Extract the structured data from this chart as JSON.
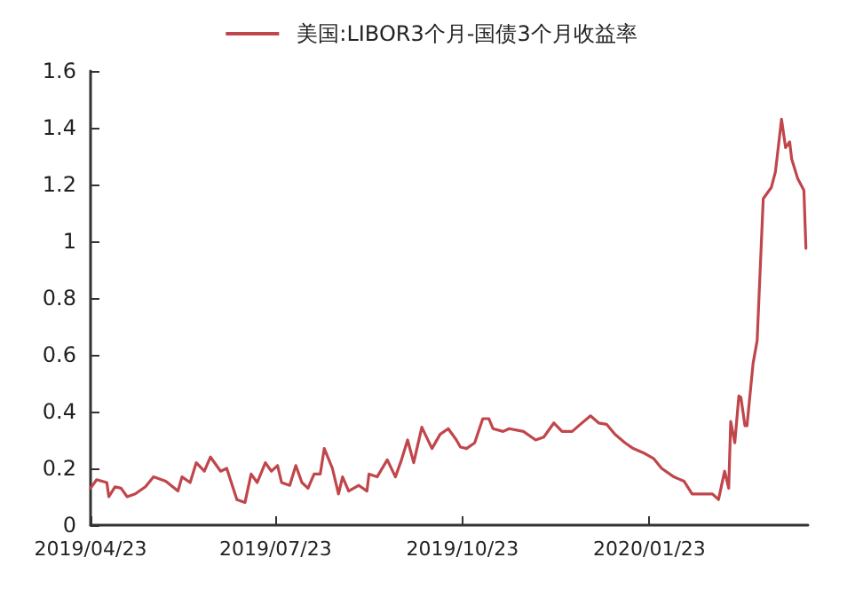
{
  "chart_data": {
    "type": "line",
    "legend": "top",
    "grid": false,
    "marker": "none",
    "line_style": "solid",
    "x": [
      "2019-04-23",
      "2019-04-26",
      "2019-05-01",
      "2019-05-02",
      "2019-05-05",
      "2019-05-08",
      "2019-05-11",
      "2019-05-15",
      "2019-05-20",
      "2019-05-24",
      "2019-05-30",
      "2019-06-05",
      "2019-06-07",
      "2019-06-11",
      "2019-06-14",
      "2019-06-18",
      "2019-06-21",
      "2019-06-26",
      "2019-06-29",
      "2019-07-04",
      "2019-07-08",
      "2019-07-11",
      "2019-07-14",
      "2019-07-18",
      "2019-07-21",
      "2019-07-24",
      "2019-07-26",
      "2019-07-30",
      "2019-08-02",
      "2019-08-05",
      "2019-08-08",
      "2019-08-11",
      "2019-08-14",
      "2019-08-16",
      "2019-08-20",
      "2019-08-23",
      "2019-08-25",
      "2019-08-28",
      "2019-09-02",
      "2019-09-06",
      "2019-09-07",
      "2019-09-11",
      "2019-09-16",
      "2019-09-20",
      "2019-09-23",
      "2019-09-26",
      "2019-09-29",
      "2019-10-03",
      "2019-10-08",
      "2019-10-12",
      "2019-10-16",
      "2019-10-20",
      "2019-10-22",
      "2019-10-25",
      "2019-10-29",
      "2019-11-02",
      "2019-11-05",
      "2019-11-07",
      "2019-11-12",
      "2019-11-15",
      "2019-11-22",
      "2019-11-28",
      "2019-12-02",
      "2019-12-07",
      "2019-12-11",
      "2019-12-16",
      "2019-12-20",
      "2019-12-25",
      "2019-12-29",
      "2020-01-02",
      "2020-01-06",
      "2020-01-11",
      "2020-01-15",
      "2020-01-20",
      "2020-01-25",
      "2020-01-29",
      "2020-02-04",
      "2020-02-09",
      "2020-02-13",
      "2020-02-19",
      "2020-02-23",
      "2020-02-26",
      "2020-02-29",
      "2020-03-02",
      "2020-03-03",
      "2020-03-05",
      "2020-03-07",
      "2020-03-08",
      "2020-03-10",
      "2020-03-11",
      "2020-03-14",
      "2020-03-16",
      "2020-03-19",
      "2020-03-23",
      "2020-03-25",
      "2020-03-28",
      "2020-03-30",
      "2020-04-01",
      "2020-04-02",
      "2020-04-05",
      "2020-04-08",
      "2020-04-09"
    ],
    "series": [
      {
        "name": "美国:LIBOR3个月-国债3个月收益率",
        "color": "#c0464b",
        "values": [
          0.13,
          0.16,
          0.15,
          0.1,
          0.135,
          0.13,
          0.1,
          0.11,
          0.135,
          0.17,
          0.155,
          0.12,
          0.17,
          0.15,
          0.22,
          0.19,
          0.24,
          0.19,
          0.2,
          0.09,
          0.08,
          0.18,
          0.15,
          0.22,
          0.19,
          0.21,
          0.15,
          0.14,
          0.21,
          0.15,
          0.13,
          0.18,
          0.18,
          0.27,
          0.2,
          0.11,
          0.17,
          0.12,
          0.14,
          0.12,
          0.18,
          0.17,
          0.23,
          0.17,
          0.23,
          0.3,
          0.22,
          0.345,
          0.27,
          0.32,
          0.34,
          0.3,
          0.275,
          0.27,
          0.29,
          0.375,
          0.375,
          0.34,
          0.33,
          0.34,
          0.33,
          0.3,
          0.31,
          0.36,
          0.33,
          0.33,
          0.355,
          0.385,
          0.36,
          0.355,
          0.32,
          0.29,
          0.27,
          0.255,
          0.235,
          0.2,
          0.17,
          0.155,
          0.11,
          0.11,
          0.11,
          0.09,
          0.19,
          0.13,
          0.365,
          0.29,
          0.455,
          0.45,
          0.35,
          0.35,
          0.57,
          0.65,
          1.15,
          1.19,
          1.245,
          1.43,
          1.33,
          1.35,
          1.29,
          1.22,
          1.18,
          0.975
        ]
      }
    ],
    "xlim": [
      "2019-04-23",
      "2020-04-10"
    ],
    "xticks": [
      {
        "value": "2019-04-23",
        "label": "2019/04/23"
      },
      {
        "value": "2019-07-23",
        "label": "2019/07/23"
      },
      {
        "value": "2019-10-23",
        "label": "2019/10/23"
      },
      {
        "value": "2020-01-23",
        "label": "2020/01/23"
      }
    ],
    "ylim": [
      0,
      1.6
    ],
    "yticks": [
      0,
      0.2,
      0.4,
      0.6,
      0.8,
      1,
      1.2,
      1.4,
      1.6
    ]
  }
}
